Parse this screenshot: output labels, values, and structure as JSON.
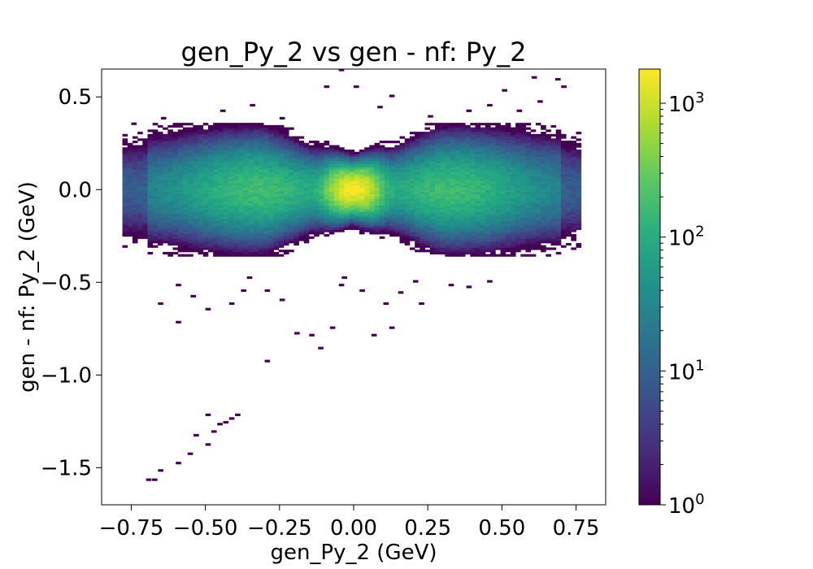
{
  "chart_data": {
    "type": "heatmap",
    "title": "gen_Py_2 vs gen - nf: Py_2",
    "xlabel": "gen_Py_2 (GeV)",
    "ylabel": "gen - nf: Py_2 (GeV)",
    "xlim": [
      -0.85,
      0.85
    ],
    "ylim": [
      -1.7,
      0.65
    ],
    "x_ticks": [
      -0.75,
      -0.5,
      -0.25,
      0.0,
      0.25,
      0.5,
      0.75
    ],
    "x_tick_labels": [
      "−0.75",
      "−0.50",
      "−0.25",
      "0.00",
      "0.25",
      "0.50",
      "0.75"
    ],
    "y_ticks": [
      0.5,
      0.0,
      -0.5,
      -1.0,
      -1.5
    ],
    "y_tick_labels": [
      "0.5",
      "0.0",
      "−0.5",
      "−1.0",
      "−1.5"
    ],
    "colormap": "viridis",
    "colorbar": {
      "scale": "log",
      "range": [
        1,
        1800
      ],
      "ticks": [
        1,
        10,
        100,
        1000
      ],
      "tick_base": "10",
      "tick_exponents": [
        "0",
        "1",
        "2",
        "3"
      ]
    },
    "grid": false,
    "bin_size": [
      0.017,
      0.012
    ],
    "band": {
      "peak_count": 1800,
      "x_range": [
        -0.78,
        0.76
      ],
      "center_y": 0.0
    },
    "outliers": [
      [
        -0.7,
        -1.57
      ],
      [
        -0.68,
        -1.57
      ],
      [
        -0.66,
        -1.52
      ],
      [
        -0.6,
        -1.48
      ],
      [
        -0.56,
        -1.43
      ],
      [
        -0.5,
        -1.38
      ],
      [
        -0.54,
        -1.33
      ],
      [
        -0.48,
        -1.31
      ],
      [
        -0.46,
        -1.27
      ],
      [
        -0.44,
        -1.26
      ],
      [
        -0.42,
        -1.24
      ],
      [
        -0.4,
        -1.22
      ],
      [
        -0.5,
        -1.22
      ],
      [
        -0.3,
        -0.93
      ],
      [
        -0.2,
        -0.78
      ],
      [
        -0.15,
        -0.79
      ],
      [
        -0.12,
        -0.86
      ],
      [
        -0.08,
        -0.75
      ],
      [
        0.06,
        -0.79
      ],
      [
        0.12,
        -0.75
      ],
      [
        -0.6,
        -0.72
      ],
      [
        -0.66,
        -0.62
      ],
      [
        -0.5,
        -0.65
      ],
      [
        -0.42,
        -0.62
      ],
      [
        -0.38,
        -0.55
      ],
      [
        -0.55,
        -0.58
      ],
      [
        -0.6,
        -0.52
      ],
      [
        -0.36,
        -0.48
      ],
      [
        -0.25,
        -0.6
      ],
      [
        -0.3,
        -0.55
      ],
      [
        -0.05,
        -0.52
      ],
      [
        0.02,
        -0.55
      ],
      [
        0.1,
        -0.62
      ],
      [
        0.2,
        -0.5
      ],
      [
        0.32,
        -0.52
      ],
      [
        0.45,
        -0.5
      ],
      [
        0.38,
        -0.53
      ],
      [
        0.22,
        -0.62
      ],
      [
        -0.04,
        -0.48
      ],
      [
        0.15,
        -0.56
      ],
      [
        -0.05,
        0.64
      ],
      [
        -0.1,
        0.55
      ],
      [
        0.0,
        0.55
      ],
      [
        0.12,
        0.5
      ],
      [
        0.08,
        0.44
      ],
      [
        0.6,
        0.6
      ],
      [
        0.68,
        0.59
      ],
      [
        0.7,
        0.55
      ],
      [
        0.5,
        0.53
      ],
      [
        0.62,
        0.47
      ],
      [
        0.25,
        0.39
      ],
      [
        0.3,
        0.33
      ],
      [
        0.45,
        0.45
      ],
      [
        0.38,
        0.42
      ],
      [
        0.55,
        0.42
      ],
      [
        -0.75,
        0.35
      ],
      [
        -0.65,
        0.38
      ],
      [
        -0.45,
        0.42
      ],
      [
        -0.35,
        0.45
      ],
      [
        -0.25,
        0.38
      ]
    ]
  }
}
